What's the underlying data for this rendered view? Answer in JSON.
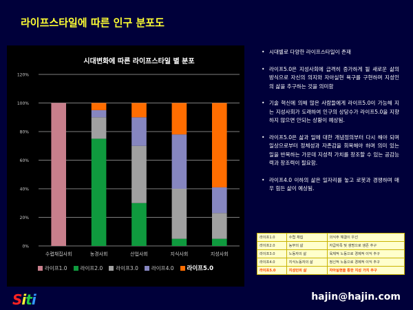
{
  "slide": {
    "title": "라이프스타일에 따른 인구 분포도",
    "contact": "hajin@hajin.com",
    "logo": [
      "S",
      "i",
      "t",
      "i"
    ]
  },
  "colors": {
    "background": "#00003a",
    "title": "#ffff33",
    "series": [
      "#c87f8c",
      "#0f9a3e",
      "#a0a0a0",
      "#8686c0",
      "#ff6d00"
    ]
  },
  "chart_data": {
    "type": "bar",
    "stacked": true,
    "title": "시대변화에 따른 라이프스타일 별 분포",
    "categories": [
      "수렵채집사회",
      "농경사회",
      "산업사회",
      "지식사회",
      "지성사회"
    ],
    "yticks": [
      "0%",
      "20%",
      "40%",
      "60%",
      "80%",
      "100%",
      "120%"
    ],
    "ylim": [
      0,
      120
    ],
    "grid": true,
    "legend_position": "bottom",
    "series": [
      {
        "name": "라이프1.0",
        "values": [
          100,
          0,
          0,
          0,
          0
        ]
      },
      {
        "name": "라이프2.0",
        "values": [
          0,
          75,
          30,
          5,
          5
        ]
      },
      {
        "name": "라이프3.0",
        "values": [
          0,
          15,
          40,
          35,
          18
        ]
      },
      {
        "name": "라이프4.0",
        "values": [
          0,
          5,
          20,
          38,
          18
        ]
      },
      {
        "name": "라이프5.0",
        "values": [
          0,
          5,
          10,
          22,
          59
        ]
      }
    ]
  },
  "bullets": [
    "시대별로 다양한 라이프스타일이 존재",
    "라이프5.0은 지성사회에 급격히 증가하게 될 새로운 삶의 방식으로 자신의 의지와 자아실현 욕구를 구현하며 지성인의 삶을 추구하는 것을 의미함",
    "기술 혁신에 의해 많은 사람들에게 라이프5.0이 가능해 지는 지성사회가 도래하여 인구의 상당수가 라이프5.0을 지향하지 않으면 안되는 상황이 예상됨.",
    "라이프5.0은 삶과 일에 대한 개념정의부터 다시 해야 되며 일상으로부터 정체성과 자존감을 회복해야 하며 의미 있는 일을 반복하는 가운데 지성적 가치를 창조할 수 있는 공감능력과 창조력이 필요함.",
    "라이프4.0 이하의 삶은 일자리를 놓고 로봇과 경쟁하며 매우 힘든 삶이 예상됨."
  ],
  "summary_table": [
    [
      "라이프1.0",
      "수렵 채집",
      "의식주 해결이 우선"
    ],
    [
      "라이프2.0",
      "농부의 삶",
      "자급자족 및 생명으로 생존 추구"
    ],
    [
      "라이프3.0",
      "노동자의 삶",
      "육체적 노동으로 경제적 이익 추구"
    ],
    [
      "라이프4.0",
      "지식노동자의 삶",
      "정신적 노동으로 경제적 이익 추구"
    ],
    [
      "라이프5.0",
      "지성인의 삶",
      "자아실현을 통한 지성 가치 추구"
    ]
  ]
}
